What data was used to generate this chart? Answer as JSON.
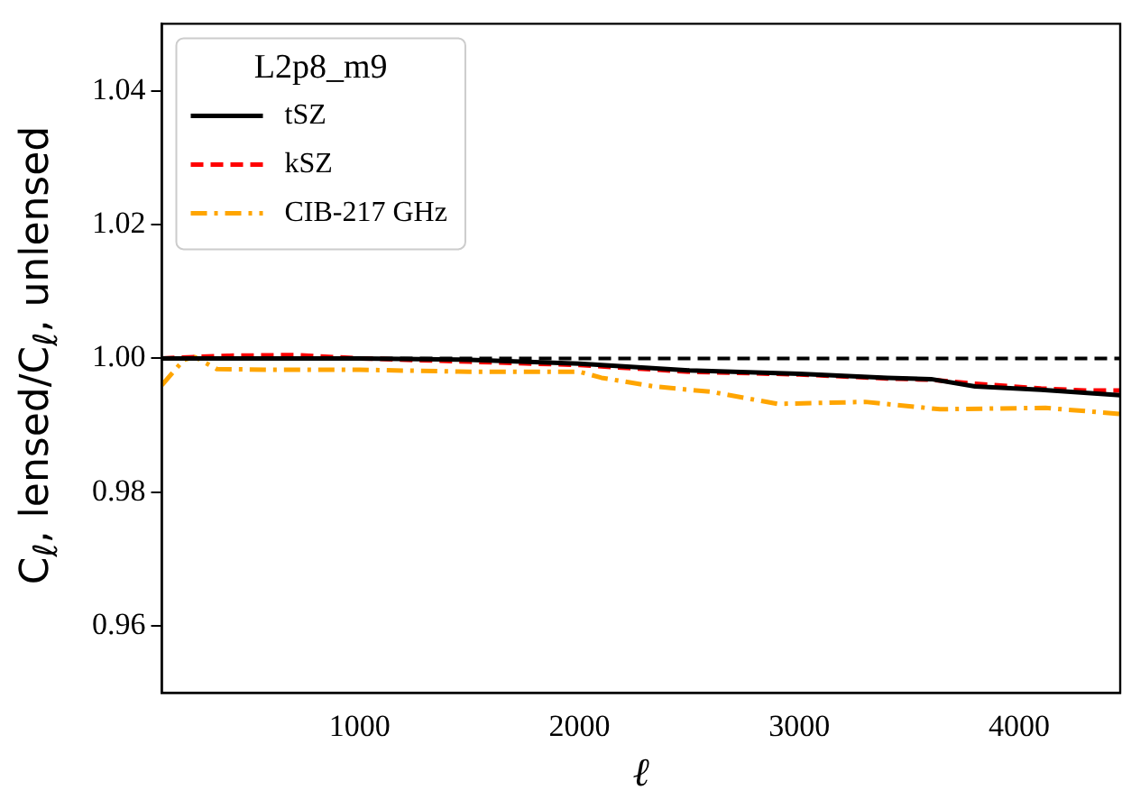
{
  "chart_data": {
    "type": "line",
    "xlabel": "ℓ",
    "ylabel": "C$_{ℓ}$, lensed/C$_{ℓ}$, unlensed",
    "legend_title": "L2p8_m9",
    "legend": "top left",
    "grid": false,
    "marker": "none",
    "xlim": [
      100,
      4460
    ],
    "xticks": [
      1000,
      2000,
      3000,
      4000
    ],
    "ylim": [
      0.95,
      1.05
    ],
    "yticks": [
      0.96,
      0.98,
      {
        "value": 1,
        "label": "1.00"
      },
      1.02,
      1.04
    ],
    "ref_lines": [
      {
        "axis": "y",
        "value": 1.0,
        "color": "#000000",
        "line_style": "dashed"
      }
    ],
    "series": [
      {
        "name": "tSZ",
        "color": "#000000",
        "line_style": "solid",
        "x": [
          100,
          500,
          1000,
          1500,
          2000,
          2500,
          3000,
          3400,
          3600,
          3800,
          4100,
          4460
        ],
        "values": [
          1.0,
          1.0,
          1.0,
          0.9998,
          0.9992,
          0.9982,
          0.9977,
          0.9971,
          0.9969,
          0.9958,
          0.9953,
          0.9945
        ]
      },
      {
        "name": "kSZ",
        "color": "#ff0000",
        "line_style": "dashed",
        "x": [
          100,
          400,
          700,
          1000,
          1500,
          2000,
          2500,
          3000,
          3400,
          3600,
          3800,
          4100,
          4300,
          4460
        ],
        "values": [
          1.0,
          1.0004,
          1.0005,
          1.0,
          0.9995,
          0.999,
          0.998,
          0.9976,
          0.997,
          0.9968,
          0.9962,
          0.9955,
          0.9952,
          0.9952
        ]
      },
      {
        "name": "CIB-217 GHz",
        "color": "#ffa500",
        "line_style": "dashdot",
        "x": [
          100,
          200,
          250,
          350,
          600,
          1000,
          1500,
          2000,
          2100,
          2340,
          2600,
          2900,
          3300,
          3640,
          4120,
          4460
        ],
        "values": [
          0.996,
          0.9998,
          1.0002,
          0.9984,
          0.9983,
          0.9983,
          0.998,
          0.998,
          0.9971,
          0.9958,
          0.995,
          0.9932,
          0.9935,
          0.9924,
          0.9926,
          0.9917
        ]
      }
    ]
  }
}
